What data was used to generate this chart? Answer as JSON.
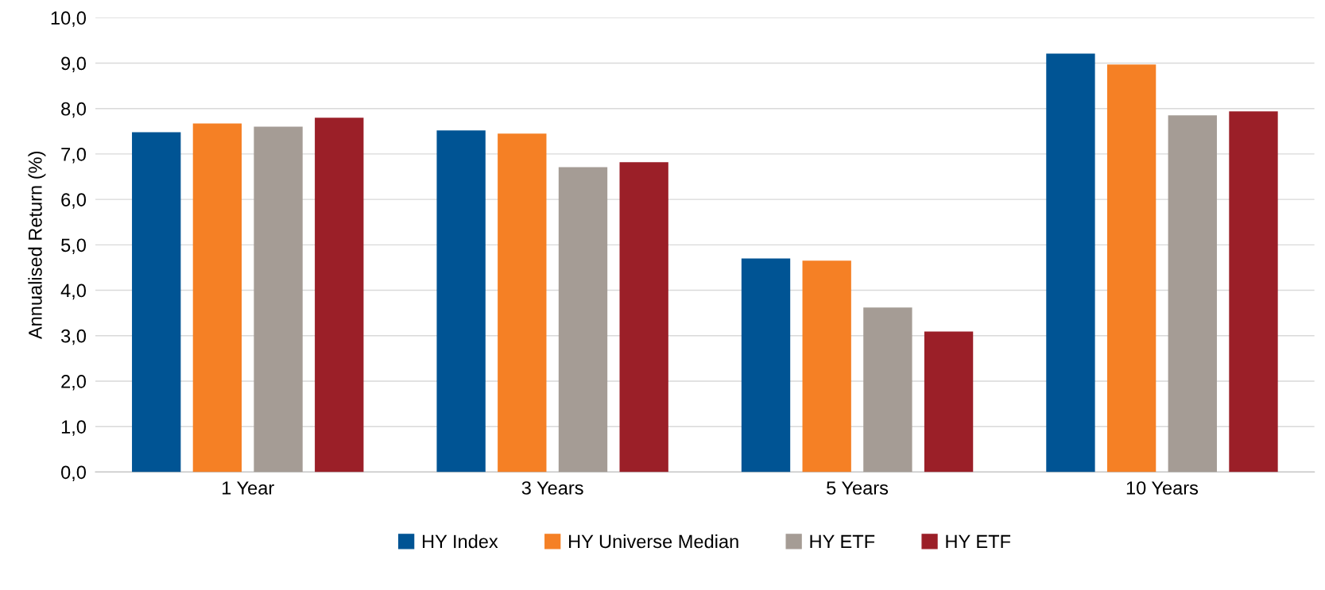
{
  "chart_data": {
    "type": "bar",
    "ylabel": "Annualised Return (%)",
    "categories": [
      "1 Year",
      "3 Years",
      "5 Years",
      "10 Years"
    ],
    "series": [
      {
        "name": "HY Index",
        "color": "#005494",
        "values": [
          7.48,
          7.52,
          4.7,
          9.21
        ]
      },
      {
        "name": "HY Universe Median",
        "color": "#f58025",
        "values": [
          7.67,
          7.45,
          4.65,
          8.97
        ]
      },
      {
        "name": "HY ETF",
        "color": "#a59c95",
        "values": [
          7.6,
          6.71,
          3.62,
          7.85
        ]
      },
      {
        "name": "HY ETF",
        "color": "#9b1f28",
        "values": [
          7.8,
          6.82,
          3.09,
          7.94
        ]
      }
    ],
    "ylim": [
      0,
      10
    ],
    "yticks": [
      {
        "value": 0,
        "label": "0,0"
      },
      {
        "value": 1,
        "label": "1,0"
      },
      {
        "value": 2,
        "label": "2,0"
      },
      {
        "value": 3,
        "label": "3,0"
      },
      {
        "value": 4,
        "label": "4,0"
      },
      {
        "value": 5,
        "label": "5,0"
      },
      {
        "value": 6,
        "label": "6,0"
      },
      {
        "value": 7,
        "label": "7,0"
      },
      {
        "value": 8,
        "label": "8,0"
      },
      {
        "value": 9,
        "label": "9,0"
      },
      {
        "value": 10,
        "label": "10,0"
      }
    ],
    "grid": "y",
    "legend": "bottom"
  }
}
